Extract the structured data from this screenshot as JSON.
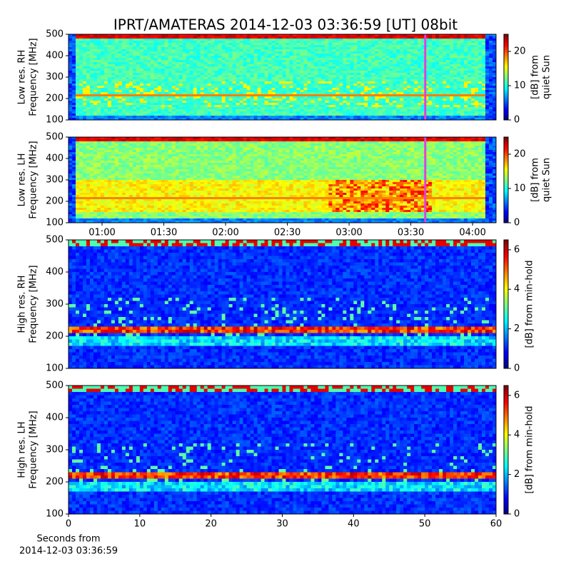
{
  "chart_data": [
    {
      "type": "heatmap",
      "title": "IPRT/AMATERAS 2014-12-03 03:36:59 [UT]   08bit",
      "ylabel": [
        "Low res. RH",
        "Frequency [MHz]"
      ],
      "ylim": [
        100,
        500
      ],
      "yticks": [
        100,
        200,
        300,
        400,
        500
      ],
      "xlim": [
        43.7,
        251.4
      ],
      "marker_time": 217,
      "marker_color": "#e040e0",
      "colorbar": {
        "label": [
          "[dB] from",
          "quiet Sun"
        ],
        "lim": [
          0,
          25
        ],
        "ticks": [
          0,
          10,
          20
        ]
      }
    },
    {
      "type": "heatmap",
      "ylabel": [
        "Low res. LH",
        "Frequency [MHz]"
      ],
      "ylim": [
        100,
        500
      ],
      "yticks": [
        100,
        200,
        300,
        400,
        500
      ],
      "xlim": [
        43.7,
        251.4
      ],
      "marker_time": 217,
      "marker_color": "#e040e0",
      "xticks": [
        {
          "value": 60,
          "label": "01:00"
        },
        {
          "value": 90,
          "label": "01:30"
        },
        {
          "value": 120,
          "label": "02:00"
        },
        {
          "value": 150,
          "label": "02:30"
        },
        {
          "value": 180,
          "label": "03:00"
        },
        {
          "value": 210,
          "label": "03:30"
        },
        {
          "value": 240,
          "label": "04:00"
        }
      ],
      "colorbar": {
        "label": [
          "[dB] from",
          "quiet Sun"
        ],
        "lim": [
          0,
          25
        ],
        "ticks": [
          0,
          10,
          20
        ]
      }
    },
    {
      "type": "heatmap",
      "ylabel": [
        "High res. RH",
        "Frequency [MHz]"
      ],
      "ylim": [
        100,
        500
      ],
      "yticks": [
        100,
        200,
        300,
        400,
        500
      ],
      "xlim": [
        0,
        60
      ],
      "colorbar": {
        "label": [
          "[dB] from min-hold"
        ],
        "lim": [
          0,
          6.5
        ],
        "ticks": [
          0,
          2,
          4,
          6
        ]
      }
    },
    {
      "type": "heatmap",
      "ylabel": [
        "High res. LH",
        "Frequency [MHz]"
      ],
      "ylim": [
        100,
        500
      ],
      "yticks": [
        100,
        200,
        300,
        400,
        500
      ],
      "xlim": [
        0,
        60
      ],
      "xticks": [
        0,
        10,
        20,
        30,
        40,
        50,
        60
      ],
      "xlabel": [
        "Seconds from",
        "2014-12-03 03:36:59"
      ],
      "colorbar": {
        "label": [
          "[dB] from min-hold"
        ],
        "lim": [
          0,
          6.5
        ],
        "ticks": [
          0,
          2,
          4,
          6
        ]
      }
    }
  ]
}
